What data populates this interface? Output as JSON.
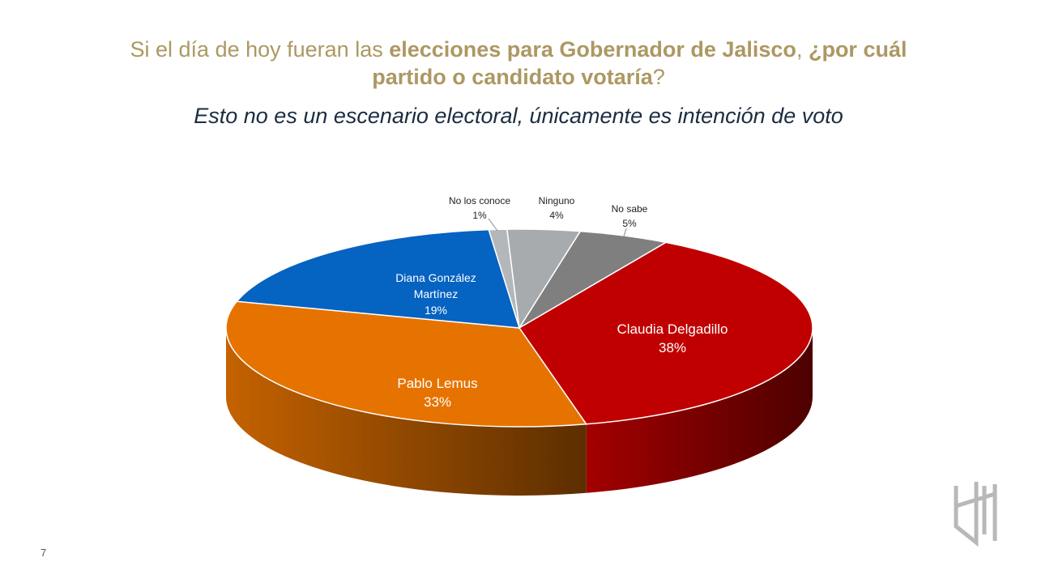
{
  "title_parts": [
    {
      "text": "Si el día de hoy fueran las ",
      "bold": false
    },
    {
      "text": "elecciones para Gobernador de Jalisco",
      "bold": true
    },
    {
      "text": ", ",
      "bold": false
    },
    {
      "text": "¿por cuál partido o candidato votaría",
      "bold": true
    },
    {
      "text": "?",
      "bold": false
    }
  ],
  "subtitle": "Esto no es un escenario electoral, únicamente es intención de voto",
  "page_number": "7",
  "chart_data": {
    "type": "pie3d",
    "categories": [
      "No los conoce",
      "Ninguno",
      "No sabe",
      "Claudia Delgadillo",
      "Pablo Lemus",
      "Diana González Martínez"
    ],
    "values": [
      1,
      4,
      5,
      38,
      33,
      19
    ],
    "value_labels": [
      "1%",
      "4%",
      "5%",
      "38%",
      "33%",
      "19%"
    ],
    "colors": [
      "#b4b7ba",
      "#a7abae",
      "#7f7f7f",
      "#c00000",
      "#e67300",
      "#0563c1"
    ]
  }
}
